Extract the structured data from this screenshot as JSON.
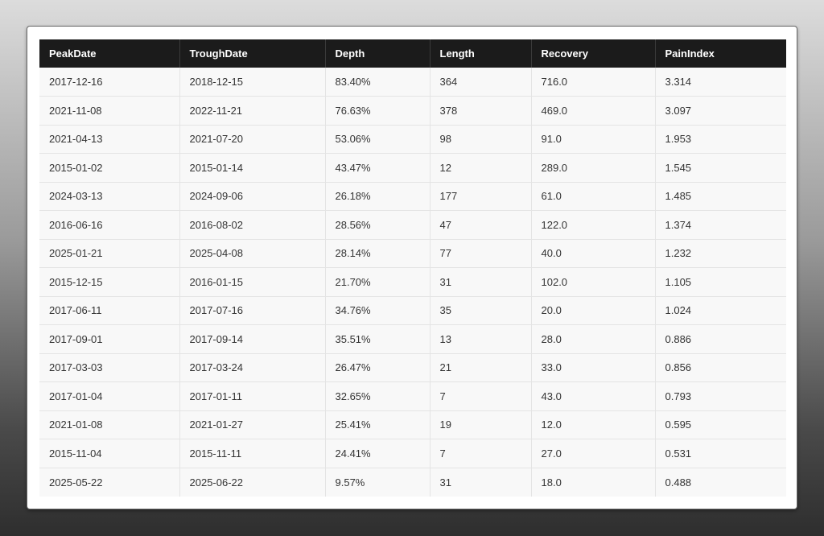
{
  "table": {
    "headers": [
      "PeakDate",
      "TroughDate",
      "Depth",
      "Length",
      "Recovery",
      "PainIndex"
    ],
    "rows": [
      [
        "2017-12-16",
        "2018-12-15",
        "83.40%",
        "364",
        "716.0",
        "3.314"
      ],
      [
        "2021-11-08",
        "2022-11-21",
        "76.63%",
        "378",
        "469.0",
        "3.097"
      ],
      [
        "2021-04-13",
        "2021-07-20",
        "53.06%",
        "98",
        "91.0",
        "1.953"
      ],
      [
        "2015-01-02",
        "2015-01-14",
        "43.47%",
        "12",
        "289.0",
        "1.545"
      ],
      [
        "2024-03-13",
        "2024-09-06",
        "26.18%",
        "177",
        "61.0",
        "1.485"
      ],
      [
        "2016-06-16",
        "2016-08-02",
        "28.56%",
        "47",
        "122.0",
        "1.374"
      ],
      [
        "2025-01-21",
        "2025-04-08",
        "28.14%",
        "77",
        "40.0",
        "1.232"
      ],
      [
        "2015-12-15",
        "2016-01-15",
        "21.70%",
        "31",
        "102.0",
        "1.105"
      ],
      [
        "2017-06-11",
        "2017-07-16",
        "34.76%",
        "35",
        "20.0",
        "1.024"
      ],
      [
        "2017-09-01",
        "2017-09-14",
        "35.51%",
        "13",
        "28.0",
        "0.886"
      ],
      [
        "2017-03-03",
        "2017-03-24",
        "26.47%",
        "21",
        "33.0",
        "0.856"
      ],
      [
        "2017-01-04",
        "2017-01-11",
        "32.65%",
        "7",
        "43.0",
        "0.793"
      ],
      [
        "2021-01-08",
        "2021-01-27",
        "25.41%",
        "19",
        "12.0",
        "0.595"
      ],
      [
        "2015-11-04",
        "2015-11-11",
        "24.41%",
        "7",
        "27.0",
        "0.531"
      ],
      [
        "2025-05-22",
        "2025-06-22",
        "9.57%",
        "31",
        "18.0",
        "0.488"
      ]
    ]
  },
  "colors": {
    "header_background": "#1b1b1b",
    "header_text": "#ffffff",
    "cell_background": "#f8f8f8",
    "cell_text": "#333333"
  }
}
